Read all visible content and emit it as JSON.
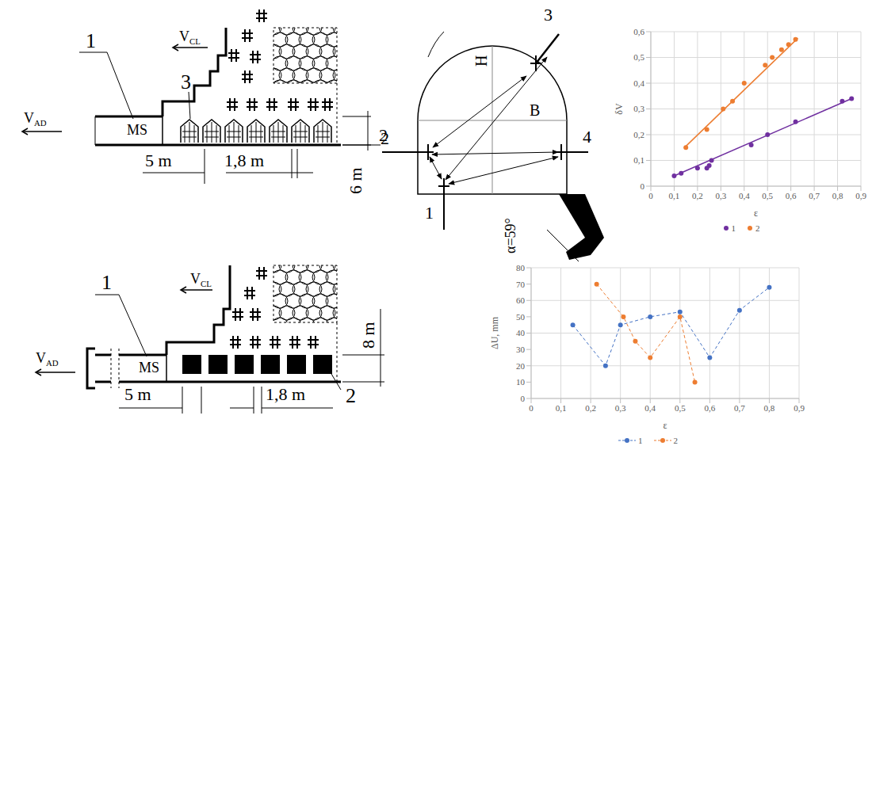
{
  "chart_data": [
    {
      "type": "scatter",
      "x_label": "ε",
      "y_label": "δV",
      "xlim": [
        0,
        0.9
      ],
      "xticks": [
        0,
        {
          "value": 0.1,
          "label": "0,1"
        },
        {
          "value": 0.2,
          "label": "0,2"
        },
        {
          "value": 0.3,
          "label": "0,3"
        },
        {
          "value": 0.4,
          "label": "0,4"
        },
        {
          "value": 0.5,
          "label": "0,5"
        },
        {
          "value": 0.6,
          "label": "0,6"
        },
        {
          "value": 0.7,
          "label": "0,7"
        },
        {
          "value": 0.8,
          "label": "0,8"
        },
        {
          "value": 0.9,
          "label": "0,9"
        }
      ],
      "ylim": [
        0,
        0.6
      ],
      "yticks": [
        0,
        {
          "value": 0.1,
          "label": "0,1"
        },
        {
          "value": 0.2,
          "label": "0,2"
        },
        {
          "value": 0.3,
          "label": "0,3"
        },
        {
          "value": 0.4,
          "label": "0,4"
        },
        {
          "value": 0.5,
          "label": "0,5"
        },
        {
          "value": 0.6,
          "label": "0,6"
        }
      ],
      "grid": true,
      "legend": "bottom",
      "marker": "circle",
      "series": [
        {
          "name": "1",
          "color": "#7030a0",
          "x": [
            0.1,
            0.13,
            0.2,
            0.24,
            0.25,
            0.26,
            0.43,
            0.5,
            0.62,
            0.82,
            0.86
          ],
          "values": [
            0.04,
            0.05,
            0.07,
            0.07,
            0.08,
            0.1,
            0.16,
            0.2,
            0.25,
            0.33,
            0.34
          ],
          "trendline": {
            "x": [
              0.1,
              0.86
            ],
            "values": [
              0.04,
              0.34
            ]
          }
        },
        {
          "name": "2",
          "color": "#ed7d31",
          "x": [
            0.15,
            0.24,
            0.31,
            0.35,
            0.4,
            0.49,
            0.52,
            0.56,
            0.59,
            0.62
          ],
          "values": [
            0.15,
            0.22,
            0.3,
            0.33,
            0.4,
            0.47,
            0.5,
            0.53,
            0.55,
            0.57
          ],
          "trendline": {
            "x": [
              0.15,
              0.63
            ],
            "values": [
              0.155,
              0.575
            ]
          }
        }
      ]
    },
    {
      "type": "line",
      "x_label": "ε",
      "y_label": "ΔU, mm",
      "xlim": [
        0,
        0.9
      ],
      "xticks": [
        0,
        {
          "value": 0.1,
          "label": "0,1"
        },
        {
          "value": 0.2,
          "label": "0,2"
        },
        {
          "value": 0.3,
          "label": "0,3"
        },
        {
          "value": 0.4,
          "label": "0,4"
        },
        {
          "value": 0.5,
          "label": "0,5"
        },
        {
          "value": 0.6,
          "label": "0,6"
        },
        {
          "value": 0.7,
          "label": "0,7"
        },
        {
          "value": 0.8,
          "label": "0,8"
        },
        {
          "value": 0.9,
          "label": "0,9"
        }
      ],
      "ylim": [
        0,
        80
      ],
      "yticks": [
        0,
        10,
        20,
        30,
        40,
        50,
        60,
        70,
        80
      ],
      "grid": true,
      "legend": "bottom",
      "marker": "circle",
      "series": [
        {
          "name": "1",
          "color": "#4472c4",
          "line_style": "dashed",
          "x": [
            0.14,
            0.25,
            0.3,
            0.4,
            0.5,
            0.6,
            0.7,
            0.8
          ],
          "values": [
            45,
            20,
            45,
            50,
            53,
            25,
            54,
            68
          ]
        },
        {
          "name": "2",
          "color": "#ed7d31",
          "line_style": "dashed",
          "x": [
            0.22,
            0.31,
            0.35,
            0.4,
            0.5,
            0.55
          ],
          "values": [
            70,
            50,
            35,
            25,
            50,
            10
          ]
        }
      ]
    }
  ],
  "schemes": [
    {
      "v_cl": [
        "V",
        "CL"
      ],
      "v_ad": [
        "V",
        "AD"
      ],
      "callouts": [
        "1",
        "3",
        "2"
      ],
      "ms": "MS",
      "dims": [
        "5 m",
        "1,8 m",
        "6 m"
      ]
    },
    {
      "v_cl": [
        "V",
        "CL"
      ],
      "v_ad": [
        "V",
        "AD"
      ],
      "callouts": [
        "1",
        "2"
      ],
      "ms": "MS",
      "dims": [
        "5 m",
        "1,8 m",
        "8 m"
      ]
    }
  ],
  "cross_section": {
    "height": "H",
    "width": "B",
    "points": [
      "1",
      "2",
      "3",
      "4"
    ],
    "angle": "α=59°"
  }
}
